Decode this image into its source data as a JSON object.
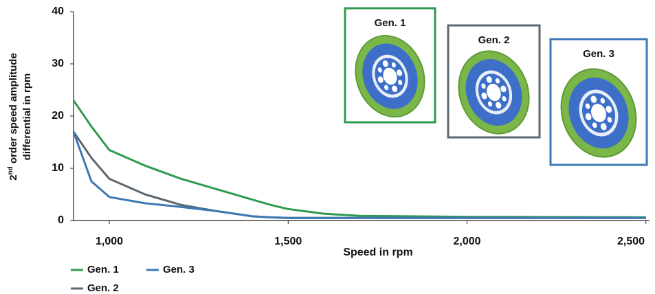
{
  "chart_data": {
    "type": "line",
    "ylabel": {
      "base": "2",
      "sup": "nd",
      "rest": " order speed amplitude",
      "line2": "differential in rpm"
    },
    "xlabel": "Speed in rpm",
    "x": [
      900,
      950,
      1000,
      1100,
      1200,
      1300,
      1400,
      1450,
      1500,
      1600,
      1700,
      2000,
      2500
    ],
    "series": [
      {
        "name": "Gen. 1",
        "color": "#2e9a4e",
        "values": [
          23,
          18,
          13.5,
          10.5,
          8,
          6,
          4,
          3,
          2.2,
          1.3,
          0.9,
          0.7,
          0.6
        ]
      },
      {
        "name": "Gen. 2",
        "color": "#5b6770",
        "values": [
          17,
          12,
          8,
          5,
          3,
          1.8,
          0.8,
          0.6,
          0.5,
          0.5,
          0.5,
          0.5,
          0.5
        ]
      },
      {
        "name": "Gen. 3",
        "color": "#3c78b4",
        "values": [
          17,
          7.5,
          4.5,
          3.3,
          2.6,
          1.8,
          0.8,
          0.6,
          0.5,
          0.5,
          0.5,
          0.5,
          0.5
        ]
      }
    ],
    "xlim": [
      900,
      2510
    ],
    "ylim": [
      0,
      40
    ],
    "xticks": [
      {
        "value": 1000,
        "label": "1,000"
      },
      {
        "value": 1500,
        "label": "1,500"
      },
      {
        "value": 2000,
        "label": "2,000"
      },
      {
        "value": 2500,
        "label": "2,500"
      }
    ],
    "yticks": [
      0,
      10,
      20,
      30,
      40
    ],
    "grid": false,
    "insets": [
      {
        "label": "Gen. 1",
        "color": "#2e9a4e"
      },
      {
        "label": "Gen. 2",
        "color": "#5b6770"
      },
      {
        "label": "Gen. 3",
        "color": "#3c78b4"
      }
    ]
  }
}
